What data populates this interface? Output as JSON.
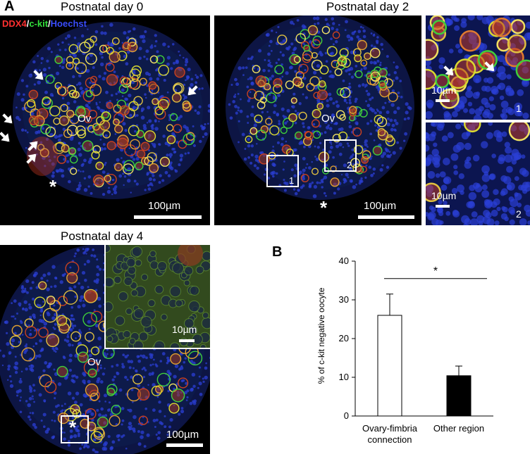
{
  "panel_a": {
    "letter": "A",
    "legend": {
      "ddx4": "DDX4",
      "sep1": "/",
      "ckit": "c-kit",
      "sep2": "/",
      "hoechst": "Hoechst"
    },
    "day0": {
      "title": "Postnatal day 0",
      "ov": "Ov",
      "asterisk": "*",
      "scale": "100µm"
    },
    "day2": {
      "title": "Postnatal day 2",
      "ov": "Ov",
      "asterisk": "*",
      "scale": "100µm",
      "box1": "1",
      "box2": "2"
    },
    "day2_inset1": {
      "scale": "10µm",
      "number": "1"
    },
    "day2_inset2": {
      "scale": "10µm",
      "number": "2"
    },
    "day4": {
      "title": "Postnatal day 4",
      "ov": "Ov",
      "asterisk": "*",
      "scale": "100µm",
      "inset_scale": "10µm"
    }
  },
  "colors": {
    "ddx4": "#e53030",
    "ckit": "#2fd43a",
    "hoechst": "#2b3fd6",
    "tissue": "#0d1a4a",
    "background": "#000000"
  },
  "panel_b": {
    "letter": "B",
    "chart_data": {
      "type": "bar",
      "categories": [
        "Ovary-fimbria connection",
        "Other region"
      ],
      "category_lines": [
        [
          "Ovary-fimbria",
          "connection"
        ],
        [
          "Other region"
        ]
      ],
      "values": [
        26.0,
        10.4
      ],
      "errors": [
        5.5,
        2.5
      ],
      "bar_colors": [
        "#ffffff",
        "#000000"
      ],
      "ylabel": "% of c-kit negative oocyte",
      "ylim": [
        0,
        40
      ],
      "yticks": [
        0,
        10,
        20,
        30,
        40
      ],
      "significance": "*",
      "grid": false
    }
  }
}
